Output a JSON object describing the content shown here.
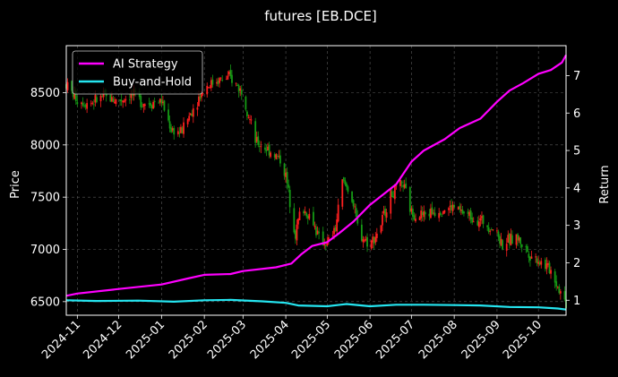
{
  "chart_data": {
    "type": "line",
    "title": "futures [EB.DCE]",
    "xlabel": "",
    "ylabel": "Price",
    "y2label": "Return",
    "candles_note_hidden": true,
    "x_ticks": [
      "2024-11",
      "2024-12",
      "2025-01",
      "2025-02",
      "2025-03",
      "2025-04",
      "2025-05",
      "2025-06",
      "2025-07",
      "2025-08",
      "2025-09",
      "2025-10"
    ],
    "x_range": [
      "2024-10-24",
      "2025-10-21"
    ],
    "ylim_price": [
      6370,
      8950
    ],
    "ylim_return": [
      0.6,
      7.8
    ],
    "y_ticks_price": [
      6500,
      7000,
      7500,
      8000,
      8500
    ],
    "y_ticks_return": [
      1,
      2,
      3,
      4,
      5,
      6,
      7
    ],
    "grid": true,
    "legend_position": "top-left",
    "colors": {
      "background": "#000000",
      "up": "#ff1f1f",
      "down": "#159a15",
      "ai": "#ff00ff",
      "bh": "#25e5f0",
      "grid": "#5a5a5a"
    },
    "price_series": {
      "name": "EB.DCE price (OHLC)",
      "points": [
        [
          "2024-10-24",
          8580
        ],
        [
          "2024-11-01",
          8430
        ],
        [
          "2024-11-10",
          8400
        ],
        [
          "2024-11-20",
          8460
        ],
        [
          "2024-12-01",
          8420
        ],
        [
          "2024-12-10",
          8480
        ],
        [
          "2024-12-20",
          8400
        ],
        [
          "2025-01-01",
          8420
        ],
        [
          "2025-01-08",
          8150
        ],
        [
          "2025-01-15",
          8120
        ],
        [
          "2025-01-25",
          8380
        ],
        [
          "2025-02-01",
          8550
        ],
        [
          "2025-02-10",
          8620
        ],
        [
          "2025-02-20",
          8640
        ],
        [
          "2025-03-01",
          8500
        ],
        [
          "2025-03-10",
          8030
        ],
        [
          "2025-03-20",
          7950
        ],
        [
          "2025-03-28",
          7860
        ],
        [
          "2025-04-01",
          7700
        ],
        [
          "2025-04-08",
          7150
        ],
        [
          "2025-04-12",
          7400
        ],
        [
          "2025-04-20",
          7300
        ],
        [
          "2025-04-25",
          7100
        ],
        [
          "2025-05-01",
          7050
        ],
        [
          "2025-05-07",
          7200
        ],
        [
          "2025-05-12",
          7650
        ],
        [
          "2025-05-18",
          7550
        ],
        [
          "2025-05-24",
          7150
        ],
        [
          "2025-06-01",
          7050
        ],
        [
          "2025-06-08",
          7200
        ],
        [
          "2025-06-15",
          7500
        ],
        [
          "2025-06-25",
          7620
        ],
        [
          "2025-07-01",
          7350
        ],
        [
          "2025-07-10",
          7330
        ],
        [
          "2025-07-20",
          7380
        ],
        [
          "2025-08-01",
          7400
        ],
        [
          "2025-08-10",
          7330
        ],
        [
          "2025-08-20",
          7280
        ],
        [
          "2025-08-30",
          7200
        ],
        [
          "2025-09-05",
          7050
        ],
        [
          "2025-09-15",
          7120
        ],
        [
          "2025-09-25",
          6950
        ],
        [
          "2025-10-01",
          6900
        ],
        [
          "2025-10-10",
          6800
        ],
        [
          "2025-10-15",
          6650
        ],
        [
          "2025-10-21",
          6480
        ]
      ]
    },
    "series": [
      {
        "name": "AI Strategy",
        "axis": "return",
        "points": [
          [
            "2024-10-24",
            1.12
          ],
          [
            "2024-11-01",
            1.18
          ],
          [
            "2024-12-01",
            1.3
          ],
          [
            "2025-01-01",
            1.42
          ],
          [
            "2025-01-20",
            1.58
          ],
          [
            "2025-02-01",
            1.68
          ],
          [
            "2025-02-20",
            1.7
          ],
          [
            "2025-03-01",
            1.78
          ],
          [
            "2025-03-25",
            1.88
          ],
          [
            "2025-04-05",
            1.98
          ],
          [
            "2025-04-12",
            2.22
          ],
          [
            "2025-04-20",
            2.45
          ],
          [
            "2025-05-01",
            2.55
          ],
          [
            "2025-05-10",
            2.8
          ],
          [
            "2025-05-20",
            3.1
          ],
          [
            "2025-06-01",
            3.55
          ],
          [
            "2025-06-20",
            4.1
          ],
          [
            "2025-07-01",
            4.7
          ],
          [
            "2025-07-10",
            5.0
          ],
          [
            "2025-07-25",
            5.3
          ],
          [
            "2025-08-05",
            5.6
          ],
          [
            "2025-08-20",
            5.85
          ],
          [
            "2025-09-01",
            6.3
          ],
          [
            "2025-09-10",
            6.6
          ],
          [
            "2025-09-20",
            6.8
          ],
          [
            "2025-10-01",
            7.05
          ],
          [
            "2025-10-10",
            7.15
          ],
          [
            "2025-10-18",
            7.35
          ],
          [
            "2025-10-21",
            7.55
          ]
        ]
      },
      {
        "name": "Buy-and-Hold",
        "axis": "return",
        "points": [
          [
            "2024-10-24",
            1.0
          ],
          [
            "2024-11-15",
            0.98
          ],
          [
            "2024-12-15",
            0.99
          ],
          [
            "2025-01-10",
            0.96
          ],
          [
            "2025-02-01",
            1.0
          ],
          [
            "2025-02-20",
            1.01
          ],
          [
            "2025-03-15",
            0.97
          ],
          [
            "2025-04-01",
            0.93
          ],
          [
            "2025-04-10",
            0.86
          ],
          [
            "2025-05-01",
            0.84
          ],
          [
            "2025-05-15",
            0.9
          ],
          [
            "2025-06-01",
            0.84
          ],
          [
            "2025-06-20",
            0.88
          ],
          [
            "2025-07-10",
            0.88
          ],
          [
            "2025-08-01",
            0.87
          ],
          [
            "2025-08-20",
            0.86
          ],
          [
            "2025-09-10",
            0.82
          ],
          [
            "2025-10-01",
            0.81
          ],
          [
            "2025-10-15",
            0.78
          ],
          [
            "2025-10-21",
            0.75
          ]
        ]
      }
    ]
  }
}
